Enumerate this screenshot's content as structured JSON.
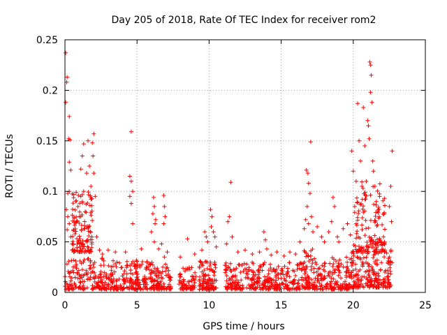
{
  "colors": {
    "series": "#ff0000",
    "axis": "#000000",
    "grid": "#a0a0a0"
  },
  "chart_data": {
    "type": "scatter",
    "title": "Day 205 of 2018, Rate Of TEC Index for receiver rom2",
    "xlabel": "GPS time / hours",
    "ylabel": "ROTI / TECUs",
    "xlim": [
      0,
      25
    ],
    "ylim": [
      0,
      0.25
    ],
    "grid": true,
    "marker": "plus",
    "x_ticks": [
      0,
      5,
      10,
      15,
      20,
      25
    ],
    "y_ticks": [
      0,
      0.05,
      0.1,
      0.15,
      0.2,
      0.25
    ],
    "x_tick_labels": [
      "0",
      "5",
      "10",
      "15",
      "20",
      "25"
    ],
    "y_tick_labels": [
      "0",
      "0.05",
      "0.1",
      "0.15",
      "0.2",
      "0.25"
    ],
    "series": [
      {
        "name": "rom2",
        "points": [
          [
            0.05,
            0.237
          ],
          [
            0.15,
            0.213
          ],
          [
            0.12,
            0.208
          ],
          [
            0.05,
            0.188
          ],
          [
            0.3,
            0.174
          ],
          [
            0.25,
            0.152
          ],
          [
            0.35,
            0.151
          ],
          [
            0.3,
            0.129
          ],
          [
            0.4,
            0.121
          ],
          [
            0.3,
            0.1
          ],
          [
            0.2,
            0.098
          ],
          [
            0.1,
            0.082
          ],
          [
            0.2,
            0.075
          ],
          [
            0.3,
            0.068
          ],
          [
            0.15,
            0.062
          ],
          [
            0.4,
            0.055
          ],
          [
            0.5,
            0.048
          ],
          [
            0.6,
            0.062
          ],
          [
            0.7,
            0.058
          ],
          [
            0.8,
            0.07
          ],
          [
            0.9,
            0.085
          ],
          [
            1.0,
            0.075
          ],
          [
            1.1,
            0.095
          ],
          [
            1.2,
            0.09
          ],
          [
            1.3,
            0.1
          ],
          [
            1.1,
            0.122
          ],
          [
            1.2,
            0.135
          ],
          [
            1.3,
            0.147
          ],
          [
            1.5,
            0.118
          ],
          [
            1.6,
            0.15
          ],
          [
            1.7,
            0.125
          ],
          [
            1.9,
            0.148
          ],
          [
            2.0,
            0.157
          ],
          [
            1.95,
            0.135
          ],
          [
            2.0,
            0.118
          ],
          [
            1.8,
            0.105
          ],
          [
            2.1,
            0.095
          ],
          [
            1.4,
            0.08
          ],
          [
            0.9,
            0.05
          ],
          [
            1.05,
            0.045
          ],
          [
            0.6,
            0.04
          ],
          [
            2.2,
            0.055
          ],
          [
            2.4,
            0.042
          ],
          [
            2.6,
            0.038
          ],
          [
            3.0,
            0.042
          ],
          [
            3.5,
            0.04
          ],
          [
            4.6,
            0.159
          ],
          [
            4.5,
            0.115
          ],
          [
            4.6,
            0.11
          ],
          [
            4.7,
            0.1
          ],
          [
            4.5,
            0.095
          ],
          [
            4.6,
            0.088
          ],
          [
            4.7,
            0.068
          ],
          [
            4.2,
            0.04
          ],
          [
            5.3,
            0.043
          ],
          [
            6.15,
            0.094
          ],
          [
            6.2,
            0.085
          ],
          [
            6.1,
            0.078
          ],
          [
            6.3,
            0.072
          ],
          [
            6.0,
            0.06
          ],
          [
            6.25,
            0.068
          ],
          [
            6.2,
            0.05
          ],
          [
            6.5,
            0.043
          ],
          [
            6.7,
            0.048
          ],
          [
            6.9,
            0.035
          ],
          [
            6.85,
            0.096
          ],
          [
            6.9,
            0.085
          ],
          [
            6.95,
            0.075
          ],
          [
            6.85,
            0.068
          ],
          [
            7.1,
            0.04
          ],
          [
            8.5,
            0.053
          ],
          [
            8.0,
            0.035
          ],
          [
            9.0,
            0.038
          ],
          [
            9.5,
            0.042
          ],
          [
            9.7,
            0.06
          ],
          [
            9.8,
            0.055
          ],
          [
            9.9,
            0.05
          ],
          [
            10.1,
            0.082
          ],
          [
            10.2,
            0.075
          ],
          [
            10.15,
            0.065
          ],
          [
            10.3,
            0.06
          ],
          [
            10.4,
            0.055
          ],
          [
            10.5,
            0.045
          ],
          [
            11.5,
            0.109
          ],
          [
            11.4,
            0.075
          ],
          [
            11.3,
            0.07
          ],
          [
            11.6,
            0.055
          ],
          [
            11.2,
            0.048
          ],
          [
            12.0,
            0.04
          ],
          [
            12.5,
            0.042
          ],
          [
            13.0,
            0.038
          ],
          [
            13.5,
            0.04
          ],
          [
            13.8,
            0.06
          ],
          [
            13.9,
            0.052
          ],
          [
            14.0,
            0.043
          ],
          [
            14.3,
            0.037
          ],
          [
            14.7,
            0.04
          ],
          [
            15.2,
            0.036
          ],
          [
            15.6,
            0.04
          ],
          [
            16.0,
            0.038
          ],
          [
            16.3,
            0.05
          ],
          [
            16.6,
            0.063
          ],
          [
            16.7,
            0.072
          ],
          [
            16.8,
            0.085
          ],
          [
            16.75,
            0.121
          ],
          [
            16.85,
            0.118
          ],
          [
            16.9,
            0.108
          ],
          [
            17.0,
            0.098
          ],
          [
            17.05,
            0.149
          ],
          [
            17.1,
            0.075
          ],
          [
            16.9,
            0.068
          ],
          [
            17.2,
            0.06
          ],
          [
            17.5,
            0.065
          ],
          [
            17.8,
            0.055
          ],
          [
            18.0,
            0.05
          ],
          [
            18.3,
            0.06
          ],
          [
            18.6,
            0.094
          ],
          [
            18.7,
            0.085
          ],
          [
            18.5,
            0.07
          ],
          [
            18.9,
            0.055
          ],
          [
            19.0,
            0.05
          ],
          [
            19.3,
            0.063
          ],
          [
            19.6,
            0.068
          ],
          [
            19.8,
            0.057
          ],
          [
            19.9,
            0.14
          ],
          [
            20.0,
            0.12
          ],
          [
            20.1,
            0.085
          ],
          [
            20.2,
            0.11
          ],
          [
            20.3,
            0.187
          ],
          [
            20.4,
            0.15
          ],
          [
            20.5,
            0.13
          ],
          [
            20.6,
            0.105
          ],
          [
            20.7,
            0.183
          ],
          [
            20.8,
            0.145
          ],
          [
            20.9,
            0.11
          ],
          [
            21.0,
            0.17
          ],
          [
            21.05,
            0.165
          ],
          [
            21.1,
            0.152
          ],
          [
            21.2,
            0.198
          ],
          [
            21.15,
            0.228
          ],
          [
            21.2,
            0.225
          ],
          [
            21.25,
            0.215
          ],
          [
            21.3,
            0.188
          ],
          [
            21.35,
            0.13
          ],
          [
            21.4,
            0.12
          ],
          [
            21.5,
            0.105
          ],
          [
            21.6,
            0.09
          ],
          [
            21.7,
            0.08
          ],
          [
            21.8,
            0.075
          ],
          [
            22.0,
            0.067
          ],
          [
            22.1,
            0.055
          ],
          [
            22.5,
            0.085
          ],
          [
            22.6,
            0.105
          ],
          [
            22.7,
            0.14
          ],
          [
            22.65,
            0.07
          ]
        ],
        "noise_bands": [
          {
            "x_range": [
              0.0,
              2.8
            ],
            "y_range": [
              0.003,
              0.034
            ],
            "count": 160
          },
          {
            "x_range": [
              0.5,
              1.9
            ],
            "y_range": [
              0.04,
              0.1
            ],
            "count": 120
          },
          {
            "x_range": [
              2.8,
              7.4
            ],
            "y_range": [
              0.003,
              0.032
            ],
            "count": 300
          },
          {
            "x_range": [
              7.9,
              9.1
            ],
            "y_range": [
              0.003,
              0.025
            ],
            "count": 70
          },
          {
            "x_range": [
              9.3,
              10.5
            ],
            "y_range": [
              0.003,
              0.033
            ],
            "count": 110
          },
          {
            "x_range": [
              11.1,
              16.3
            ],
            "y_range": [
              0.003,
              0.03
            ],
            "count": 320
          },
          {
            "x_range": [
              16.3,
              17.3
            ],
            "y_range": [
              0.004,
              0.045
            ],
            "count": 80
          },
          {
            "x_range": [
              17.3,
              19.8
            ],
            "y_range": [
              0.003,
              0.035
            ],
            "count": 160
          },
          {
            "x_range": [
              19.8,
              22.7
            ],
            "y_range": [
              0.005,
              0.045
            ],
            "count": 220
          },
          {
            "x_range": [
              20.0,
              22.2
            ],
            "y_range": [
              0.04,
              0.11
            ],
            "count": 140
          }
        ]
      }
    ]
  }
}
